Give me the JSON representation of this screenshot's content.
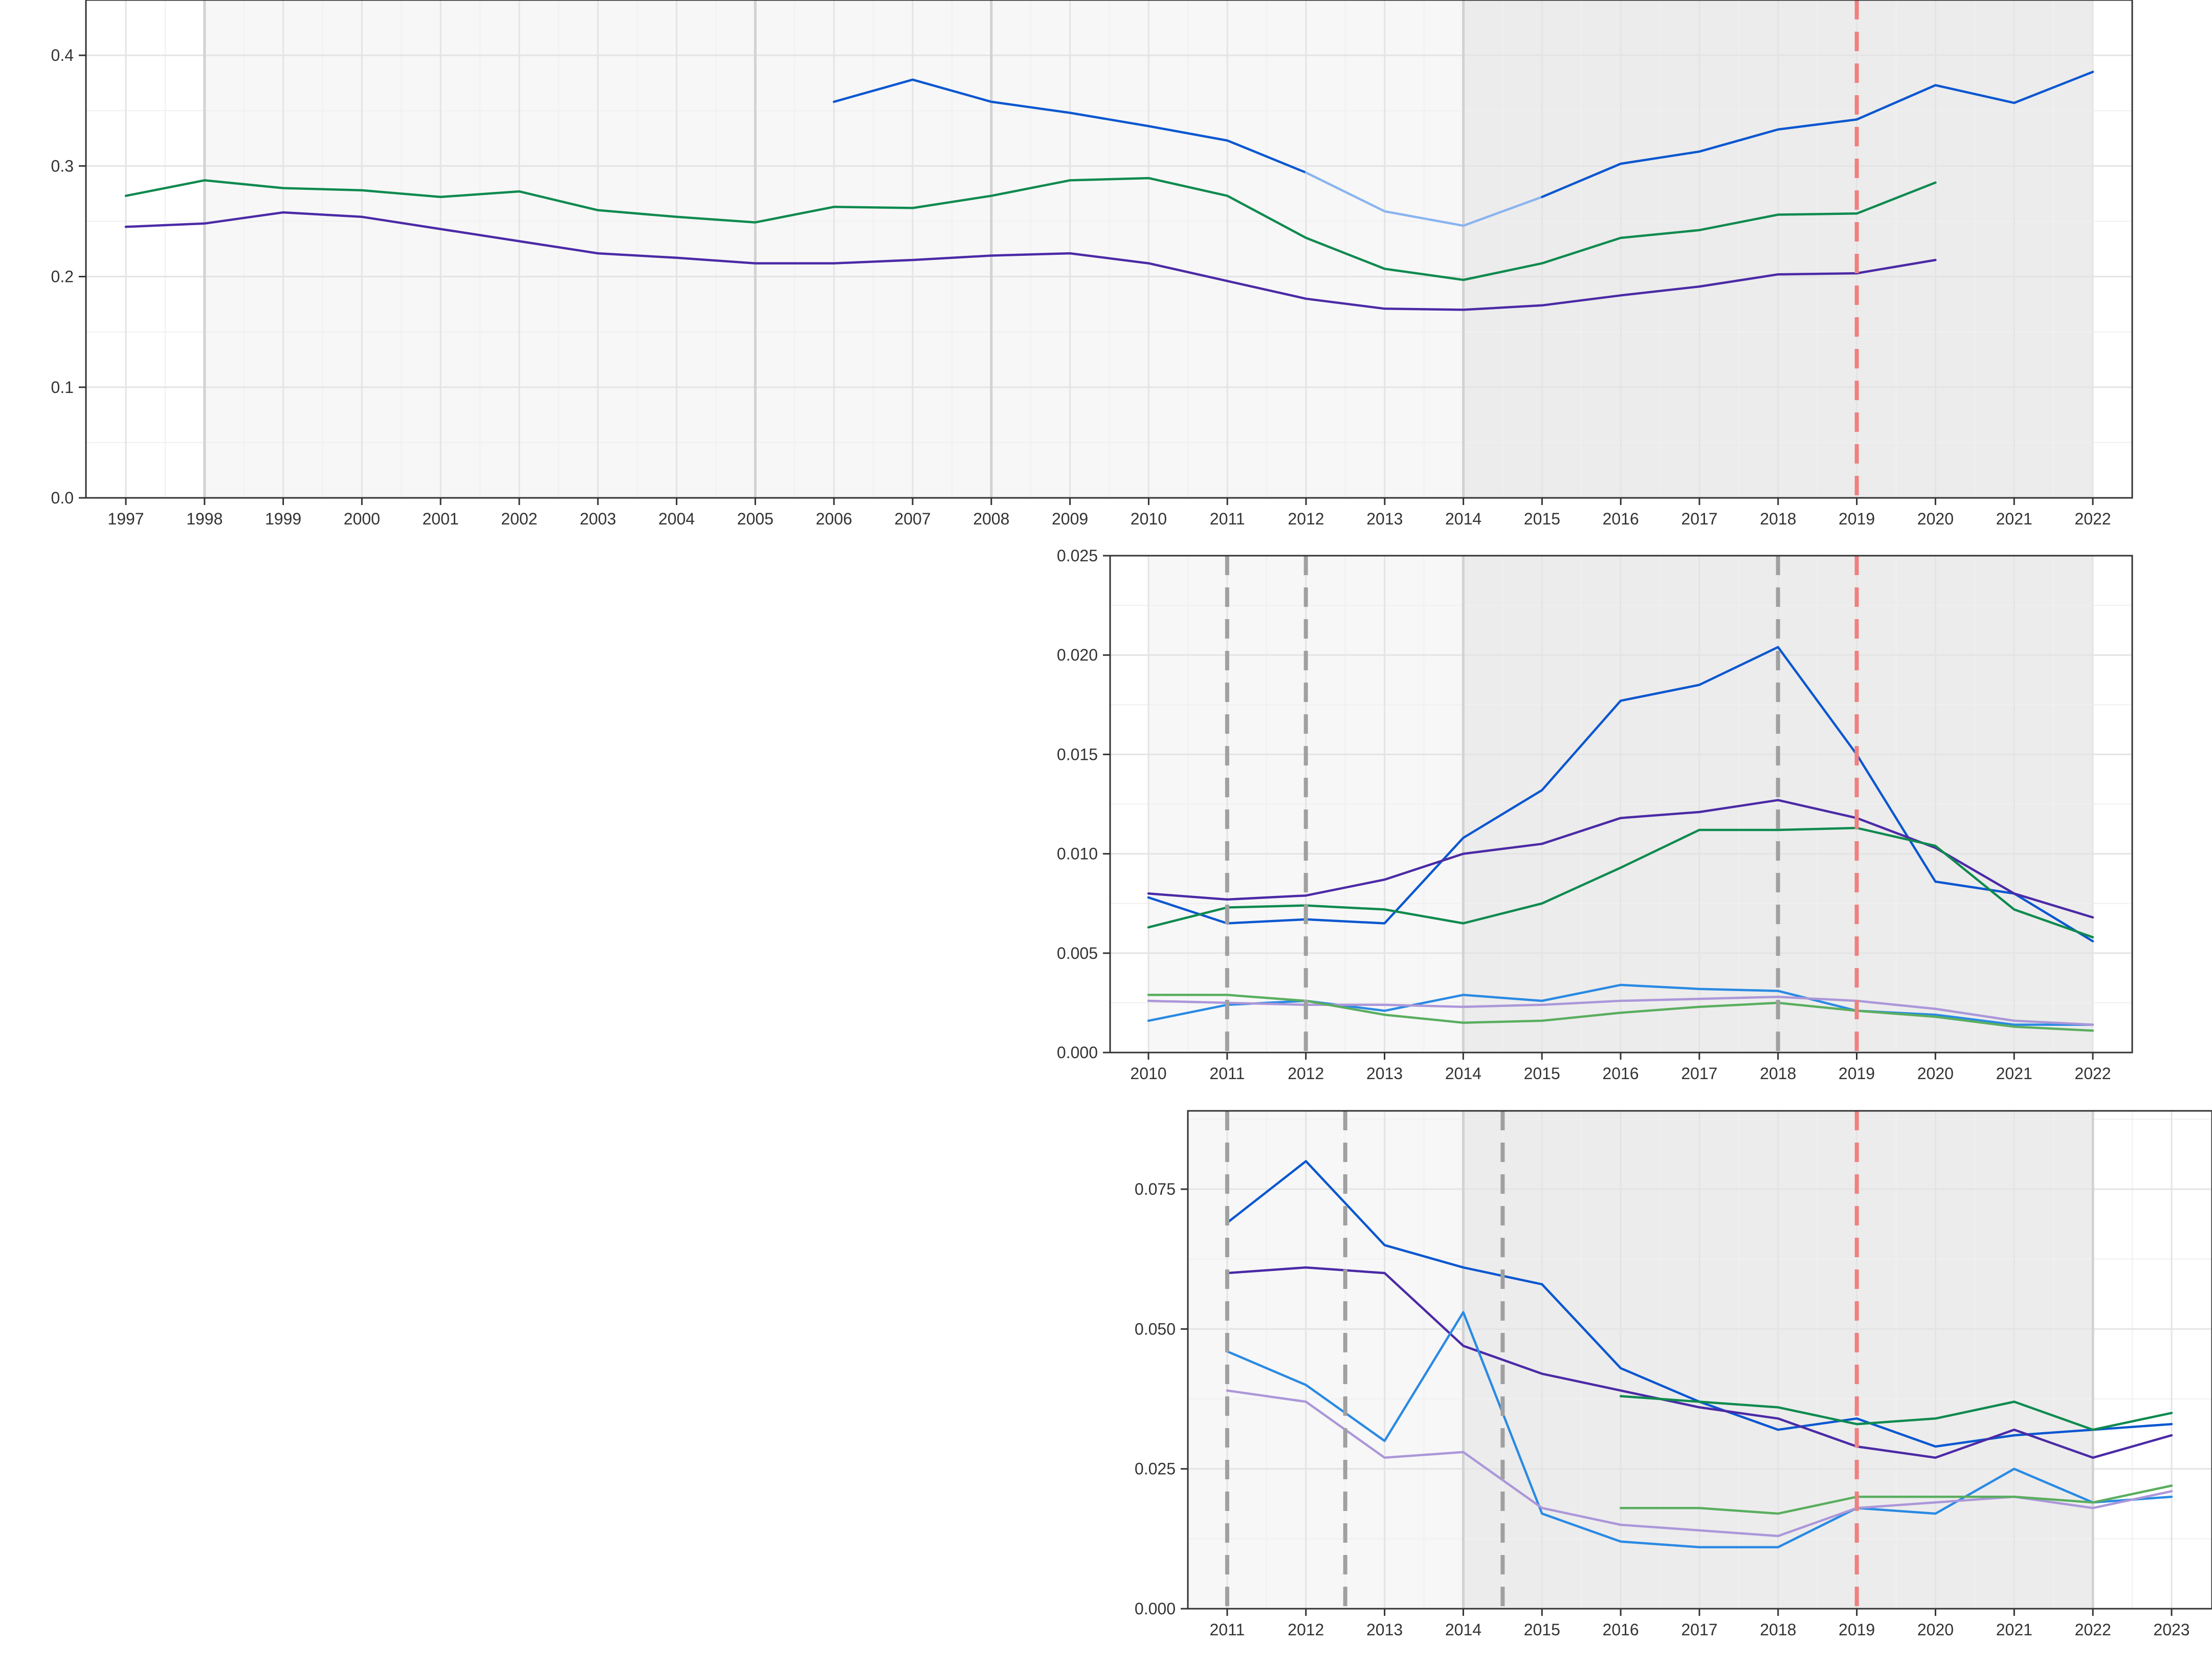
{
  "chart_data": [
    {
      "type": "line",
      "panel": "top",
      "xlim": [
        1997,
        2022
      ],
      "ylim": [
        0,
        0.45
      ],
      "x_ticks": [
        1997,
        1998,
        1999,
        2000,
        2001,
        2002,
        2003,
        2004,
        2005,
        2006,
        2007,
        2008,
        2009,
        2010,
        2011,
        2012,
        2013,
        2014,
        2015,
        2016,
        2017,
        2018,
        2019,
        2020,
        2021,
        2022
      ],
      "y_ticks": [
        0,
        0.1,
        0.2,
        0.3,
        0.4
      ],
      "y_tick_labels": [
        "0.0",
        "0.1",
        "0.2",
        "0.3",
        "0.4"
      ],
      "shaded_bands": [
        {
          "from": 1998,
          "to": 2014,
          "color": "#f7f7f7"
        },
        {
          "from": 2014,
          "to": 2022,
          "color": "#ececec"
        }
      ],
      "gray_vlines": [
        1998,
        2005,
        2008,
        2014
      ],
      "red_dashed_vlines": [
        2019
      ],
      "series": [
        {
          "color": "#0b57d0",
          "x": [
            2006,
            2007,
            2008,
            2009,
            2010,
            2011,
            2012
          ],
          "values": [
            0.358,
            0.378,
            0.358,
            0.348,
            0.336,
            0.323,
            0.294
          ]
        },
        {
          "color": "#8ab4f0",
          "x": [
            2012,
            2013,
            2014,
            2015
          ],
          "values": [
            0.294,
            0.259,
            0.246,
            0.272
          ]
        },
        {
          "color": "#0b57d0",
          "x": [
            2015,
            2016,
            2017,
            2018,
            2019,
            2020,
            2021,
            2022
          ],
          "values": [
            0.272,
            0.302,
            0.313,
            0.333,
            0.342,
            0.373,
            0.357,
            0.385
          ]
        },
        {
          "color": "#0f8a4f",
          "x": [
            1997,
            1998,
            1999,
            2000,
            2001,
            2002,
            2003,
            2004,
            2005,
            2006,
            2007,
            2008,
            2009,
            2010,
            2011,
            2012,
            2013,
            2014,
            2015,
            2016,
            2017,
            2018,
            2019,
            2020
          ],
          "values": [
            0.273,
            0.287,
            0.28,
            0.278,
            0.272,
            0.277,
            0.26,
            0.254,
            0.249,
            0.263,
            0.262,
            0.273,
            0.287,
            0.289,
            0.273,
            0.235,
            0.207,
            0.197,
            0.212,
            0.235,
            0.242,
            0.256,
            0.257,
            0.285
          ]
        },
        {
          "color": "#4b2aa6",
          "x": [
            1997,
            1998,
            1999,
            2000,
            2001,
            2002,
            2003,
            2004,
            2005,
            2006,
            2007,
            2008,
            2009,
            2010,
            2011,
            2012,
            2013,
            2014,
            2015,
            2016,
            2017,
            2018,
            2019,
            2020
          ],
          "values": [
            0.245,
            0.248,
            0.258,
            0.254,
            0.243,
            0.232,
            0.221,
            0.217,
            0.212,
            0.212,
            0.215,
            0.219,
            0.221,
            0.212,
            0.196,
            0.18,
            0.171,
            0.17,
            0.174,
            0.183,
            0.191,
            0.202,
            0.203,
            0.215
          ]
        }
      ]
    },
    {
      "type": "line",
      "panel": "middle",
      "xlim": [
        2010,
        2022
      ],
      "ylim": [
        0,
        0.025
      ],
      "x_ticks": [
        2010,
        2011,
        2012,
        2013,
        2014,
        2015,
        2016,
        2017,
        2018,
        2019,
        2020,
        2021,
        2022
      ],
      "y_ticks": [
        0,
        0.005,
        0.01,
        0.015,
        0.02,
        0.025
      ],
      "y_tick_labels": [
        "0.000",
        "0.005",
        "0.010",
        "0.015",
        "0.020",
        "0.025"
      ],
      "shaded_bands": [
        {
          "from": 2010,
          "to": 2014,
          "color": "#f7f7f7"
        },
        {
          "from": 2014,
          "to": 2022,
          "color": "#ececec"
        }
      ],
      "gray_vlines": [
        2014
      ],
      "gray_dashed_vlines": [
        2011,
        2012,
        2018
      ],
      "red_dashed_vlines": [
        2019
      ],
      "series": [
        {
          "color": "#0b57d0",
          "x": [
            2010,
            2011,
            2012,
            2013,
            2014,
            2015,
            2016,
            2017,
            2018,
            2019,
            2020,
            2021,
            2022
          ],
          "values": [
            0.0078,
            0.0065,
            0.0067,
            0.0065,
            0.0108,
            0.0132,
            0.0177,
            0.0185,
            0.0204,
            0.015,
            0.0086,
            0.008,
            0.0056
          ]
        },
        {
          "color": "#4b2aa6",
          "x": [
            2010,
            2011,
            2012,
            2013,
            2014,
            2015,
            2016,
            2017,
            2018,
            2019,
            2020,
            2021,
            2022
          ],
          "values": [
            0.008,
            0.0077,
            0.0079,
            0.0087,
            0.01,
            0.0105,
            0.0118,
            0.0121,
            0.0127,
            0.0118,
            0.0103,
            0.008,
            0.0068
          ]
        },
        {
          "color": "#0f8a4f",
          "x": [
            2010,
            2011,
            2012,
            2013,
            2014,
            2015,
            2016,
            2017,
            2018,
            2019,
            2020,
            2021,
            2022
          ],
          "values": [
            0.0063,
            0.0073,
            0.0074,
            0.0072,
            0.0065,
            0.0075,
            0.0093,
            0.0112,
            0.0112,
            0.0113,
            0.0104,
            0.0072,
            0.0058
          ]
        },
        {
          "color": "#2a8ae3",
          "x": [
            2010,
            2011,
            2012,
            2013,
            2014,
            2015,
            2016,
            2017,
            2018,
            2019,
            2020,
            2021,
            2022
          ],
          "values": [
            0.0016,
            0.0024,
            0.0026,
            0.0021,
            0.0029,
            0.0026,
            0.0034,
            0.0032,
            0.0031,
            0.0021,
            0.0019,
            0.0014,
            0.0014
          ]
        },
        {
          "color": "#ab97d9",
          "x": [
            2010,
            2011,
            2012,
            2013,
            2014,
            2015,
            2016,
            2017,
            2018,
            2019,
            2020,
            2021,
            2022
          ],
          "values": [
            0.0026,
            0.0025,
            0.0024,
            0.0024,
            0.0023,
            0.0024,
            0.0026,
            0.0027,
            0.0028,
            0.0026,
            0.0022,
            0.0016,
            0.0014
          ]
        },
        {
          "color": "#5aae5f",
          "x": [
            2010,
            2011,
            2012,
            2013,
            2014,
            2015,
            2016,
            2017,
            2018,
            2019,
            2020,
            2021,
            2022
          ],
          "values": [
            0.0029,
            0.0029,
            0.0026,
            0.0019,
            0.0015,
            0.0016,
            0.002,
            0.0023,
            0.0025,
            0.0021,
            0.0018,
            0.0013,
            0.0011
          ]
        }
      ]
    },
    {
      "type": "line",
      "panel": "bottom",
      "xlim": [
        2010.5,
        2023
      ],
      "ylim": [
        0,
        0.089
      ],
      "x_ticks": [
        2011,
        2012,
        2013,
        2014,
        2015,
        2016,
        2017,
        2018,
        2019,
        2020,
        2021,
        2022,
        2023
      ],
      "y_ticks": [
        0,
        0.025,
        0.05,
        0.075
      ],
      "y_tick_labels": [
        "0.000",
        "0.025",
        "0.050",
        "0.075"
      ],
      "shaded_bands": [
        {
          "from": 2010.5,
          "to": 2014,
          "color": "#f7f7f7"
        },
        {
          "from": 2014,
          "to": 2022,
          "color": "#ececec"
        }
      ],
      "gray_vlines": [
        2014,
        2022
      ],
      "gray_dashed_vlines": [
        2011,
        2012.5,
        2014.5
      ],
      "red_dashed_vlines": [
        2019
      ],
      "series": [
        {
          "color": "#0b57d0",
          "x": [
            2011,
            2012,
            2013,
            2014,
            2015,
            2016,
            2017,
            2018,
            2019,
            2020,
            2021,
            2022,
            2023
          ],
          "values": [
            0.069,
            0.08,
            0.065,
            0.061,
            0.058,
            0.043,
            0.037,
            0.032,
            0.034,
            0.029,
            0.031,
            0.032,
            0.033
          ]
        },
        {
          "color": "#4b2aa6",
          "x": [
            2011,
            2012,
            2013,
            2014,
            2015,
            2016,
            2017,
            2018,
            2019,
            2020,
            2021,
            2022,
            2023
          ],
          "values": [
            0.06,
            0.061,
            0.06,
            0.047,
            0.042,
            0.039,
            0.036,
            0.034,
            0.029,
            0.027,
            0.032,
            0.027,
            0.031
          ]
        },
        {
          "color": "#0f8a4f",
          "x": [
            2016,
            2017,
            2018,
            2019,
            2020,
            2021,
            2022,
            2023
          ],
          "values": [
            0.038,
            0.037,
            0.036,
            0.033,
            0.034,
            0.037,
            0.032,
            0.035
          ]
        },
        {
          "color": "#2a8ae3",
          "x": [
            2011,
            2012,
            2013,
            2014,
            2015,
            2016,
            2017,
            2018,
            2019,
            2020,
            2021,
            2022,
            2023
          ],
          "values": [
            0.046,
            0.04,
            0.03,
            0.053,
            0.017,
            0.012,
            0.011,
            0.011,
            0.018,
            0.017,
            0.025,
            0.019,
            0.02
          ]
        },
        {
          "color": "#ab97d9",
          "x": [
            2011,
            2012,
            2013,
            2014,
            2015,
            2016,
            2017,
            2018,
            2019,
            2020,
            2021,
            2022,
            2023
          ],
          "values": [
            0.039,
            0.037,
            0.027,
            0.028,
            0.018,
            0.015,
            0.014,
            0.013,
            0.018,
            0.019,
            0.02,
            0.018,
            0.021
          ]
        },
        {
          "color": "#5aae5f",
          "x": [
            2016,
            2017,
            2018,
            2019,
            2020,
            2021,
            2022,
            2023
          ],
          "values": [
            0.018,
            0.018,
            0.017,
            0.02,
            0.02,
            0.02,
            0.019,
            0.022
          ]
        }
      ]
    }
  ]
}
